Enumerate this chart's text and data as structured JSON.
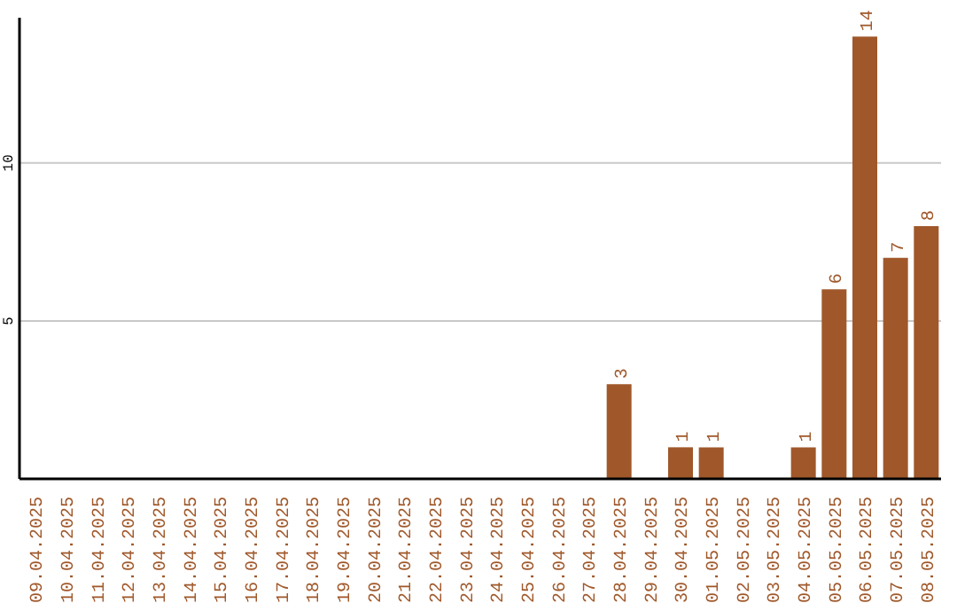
{
  "chart_data": {
    "type": "bar",
    "categories": [
      "09.04.2025",
      "10.04.2025",
      "11.04.2025",
      "12.04.2025",
      "13.04.2025",
      "14.04.2025",
      "15.04.2025",
      "16.04.2025",
      "17.04.2025",
      "18.04.2025",
      "19.04.2025",
      "20.04.2025",
      "21.04.2025",
      "22.04.2025",
      "23.04.2025",
      "24.04.2025",
      "25.04.2025",
      "26.04.2025",
      "27.04.2025",
      "28.04.2025",
      "29.04.2025",
      "30.04.2025",
      "01.05.2025",
      "02.05.2025",
      "03.05.2025",
      "04.05.2025",
      "05.05.2025",
      "06.05.2025",
      "07.05.2025",
      "08.05.2025"
    ],
    "values": [
      0,
      0,
      0,
      0,
      0,
      0,
      0,
      0,
      0,
      0,
      0,
      0,
      0,
      0,
      0,
      0,
      0,
      0,
      0,
      3,
      0,
      1,
      1,
      0,
      0,
      1,
      6,
      14,
      7,
      8
    ],
    "value_labels": [
      null,
      null,
      null,
      null,
      null,
      null,
      null,
      null,
      null,
      null,
      null,
      null,
      null,
      null,
      null,
      null,
      null,
      null,
      null,
      "3",
      null,
      "1",
      "1",
      null,
      null,
      "1",
      "6",
      "14",
      "7",
      "8"
    ],
    "color": "#a0582a",
    "ylim": [
      0,
      14.6
    ],
    "yticks": [
      5,
      10
    ],
    "grid": "y"
  }
}
